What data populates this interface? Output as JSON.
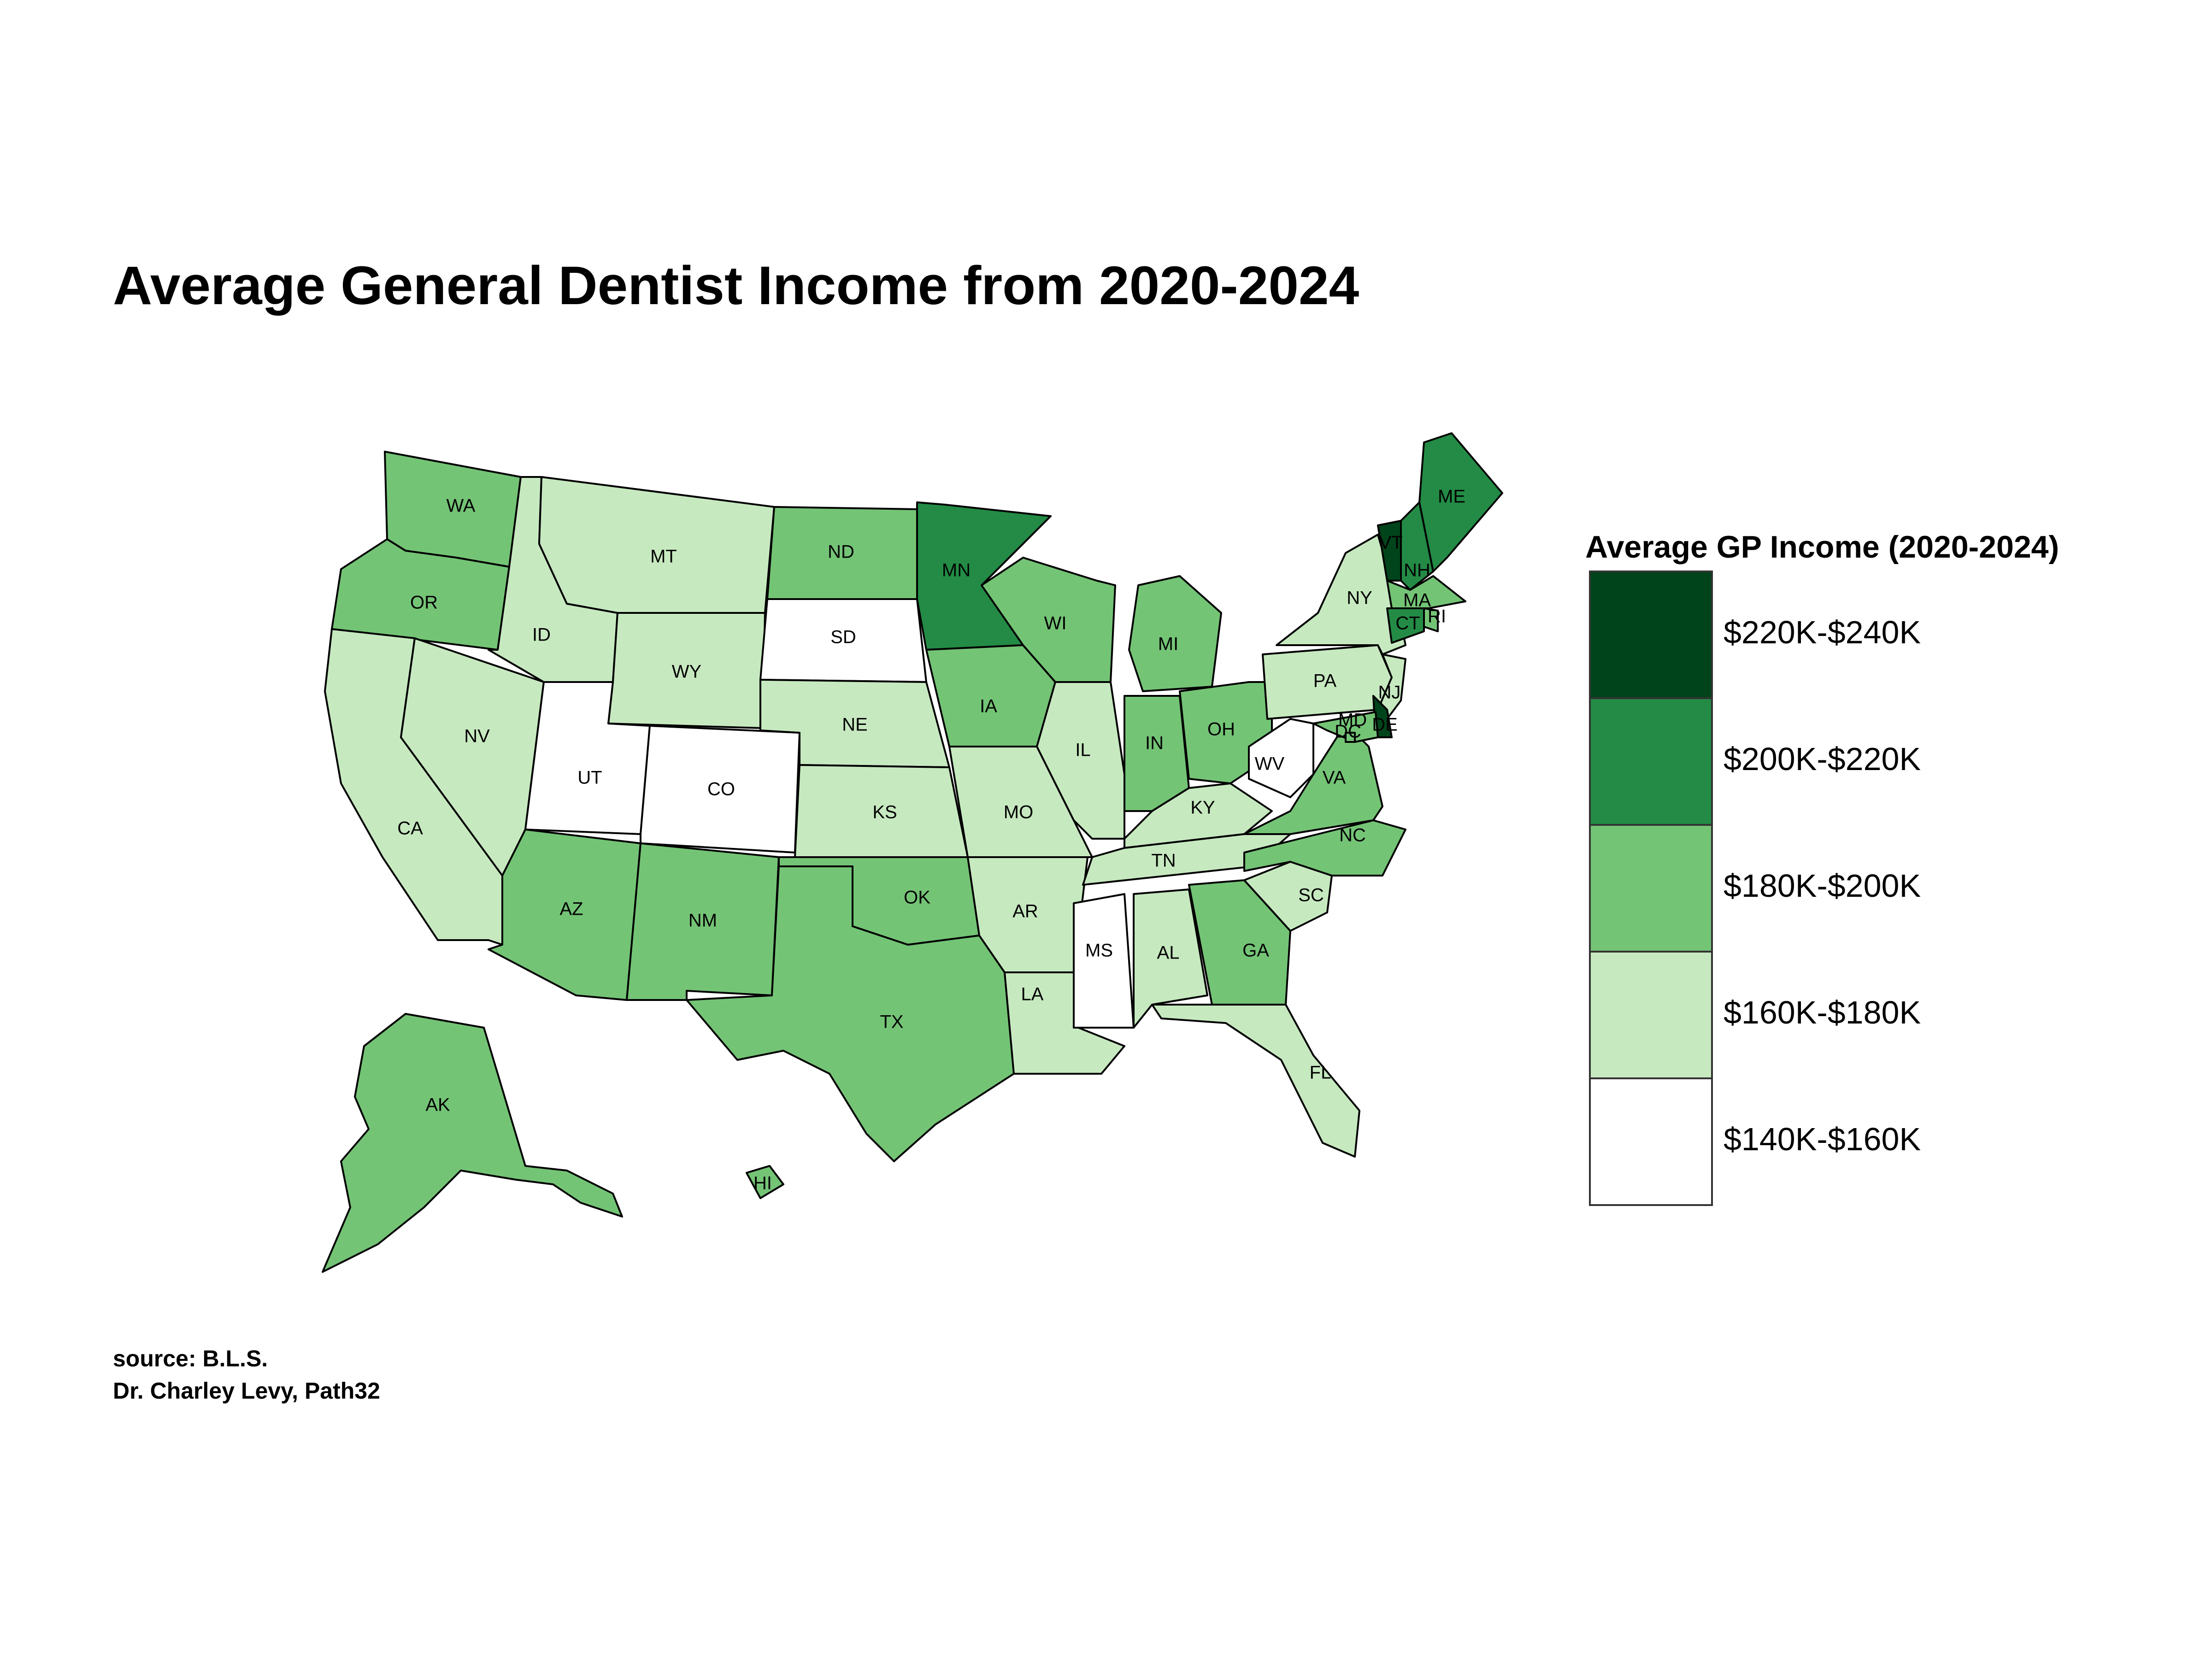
{
  "title": "Average General Dentist Income from 2020-2024",
  "caption": {
    "line1": "source: B.L.S.",
    "line2": "Dr. Charley Levy, Path32"
  },
  "legend": {
    "title": "Average GP Income (2020-2024)",
    "classes": [
      {
        "label": "$220K-$240K",
        "color": "#00441b"
      },
      {
        "label": "$200K-$220K",
        "color": "#238b45"
      },
      {
        "label": "$180K-$200K",
        "color": "#74c476"
      },
      {
        "label": "$160K-$180K",
        "color": "#c7e9c0"
      },
      {
        "label": "$140K-$160K",
        "color": "#ffffff"
      }
    ]
  },
  "chart_data": {
    "type": "choropleth",
    "region": "United States",
    "states": [
      {
        "abbr": "WA",
        "class": "$180K-$200K"
      },
      {
        "abbr": "OR",
        "class": "$180K-$200K"
      },
      {
        "abbr": "CA",
        "class": "$160K-$180K"
      },
      {
        "abbr": "NV",
        "class": "$160K-$180K"
      },
      {
        "abbr": "ID",
        "class": "$160K-$180K"
      },
      {
        "abbr": "MT",
        "class": "$160K-$180K"
      },
      {
        "abbr": "WY",
        "class": "$160K-$180K"
      },
      {
        "abbr": "UT",
        "class": "$140K-$160K"
      },
      {
        "abbr": "CO",
        "class": "$140K-$160K"
      },
      {
        "abbr": "AZ",
        "class": "$180K-$200K"
      },
      {
        "abbr": "NM",
        "class": "$180K-$200K"
      },
      {
        "abbr": "ND",
        "class": "$180K-$200K"
      },
      {
        "abbr": "SD",
        "class": "$140K-$160K"
      },
      {
        "abbr": "NE",
        "class": "$160K-$180K"
      },
      {
        "abbr": "KS",
        "class": "$160K-$180K"
      },
      {
        "abbr": "OK",
        "class": "$180K-$200K"
      },
      {
        "abbr": "TX",
        "class": "$180K-$200K"
      },
      {
        "abbr": "MN",
        "class": "$200K-$220K"
      },
      {
        "abbr": "IA",
        "class": "$180K-$200K"
      },
      {
        "abbr": "MO",
        "class": "$160K-$180K"
      },
      {
        "abbr": "AR",
        "class": "$160K-$180K"
      },
      {
        "abbr": "LA",
        "class": "$160K-$180K"
      },
      {
        "abbr": "WI",
        "class": "$180K-$200K"
      },
      {
        "abbr": "IL",
        "class": "$160K-$180K"
      },
      {
        "abbr": "MI",
        "class": "$180K-$200K"
      },
      {
        "abbr": "IN",
        "class": "$180K-$200K"
      },
      {
        "abbr": "OH",
        "class": "$180K-$200K"
      },
      {
        "abbr": "KY",
        "class": "$160K-$180K"
      },
      {
        "abbr": "TN",
        "class": "$160K-$180K"
      },
      {
        "abbr": "MS",
        "class": "$140K-$160K"
      },
      {
        "abbr": "AL",
        "class": "$160K-$180K"
      },
      {
        "abbr": "GA",
        "class": "$180K-$200K"
      },
      {
        "abbr": "FL",
        "class": "$160K-$180K"
      },
      {
        "abbr": "SC",
        "class": "$160K-$180K"
      },
      {
        "abbr": "NC",
        "class": "$180K-$200K"
      },
      {
        "abbr": "VA",
        "class": "$180K-$200K"
      },
      {
        "abbr": "WV",
        "class": "$140K-$160K"
      },
      {
        "abbr": "PA",
        "class": "$160K-$180K"
      },
      {
        "abbr": "NY",
        "class": "$160K-$180K"
      },
      {
        "abbr": "VT",
        "class": "$220K-$240K"
      },
      {
        "abbr": "NH",
        "class": "$200K-$220K"
      },
      {
        "abbr": "ME",
        "class": "$200K-$220K"
      },
      {
        "abbr": "MA",
        "class": "$180K-$200K"
      },
      {
        "abbr": "RI",
        "class": "$180K-$200K"
      },
      {
        "abbr": "CT",
        "class": "$200K-$220K"
      },
      {
        "abbr": "NJ",
        "class": "$160K-$180K"
      },
      {
        "abbr": "DE",
        "class": "$220K-$240K"
      },
      {
        "abbr": "MD",
        "class": "$180K-$200K"
      },
      {
        "abbr": "DC",
        "class": "$180K-$200K"
      },
      {
        "abbr": "AK",
        "class": "$180K-$200K"
      },
      {
        "abbr": "HI",
        "class": "$180K-$200K"
      }
    ]
  }
}
